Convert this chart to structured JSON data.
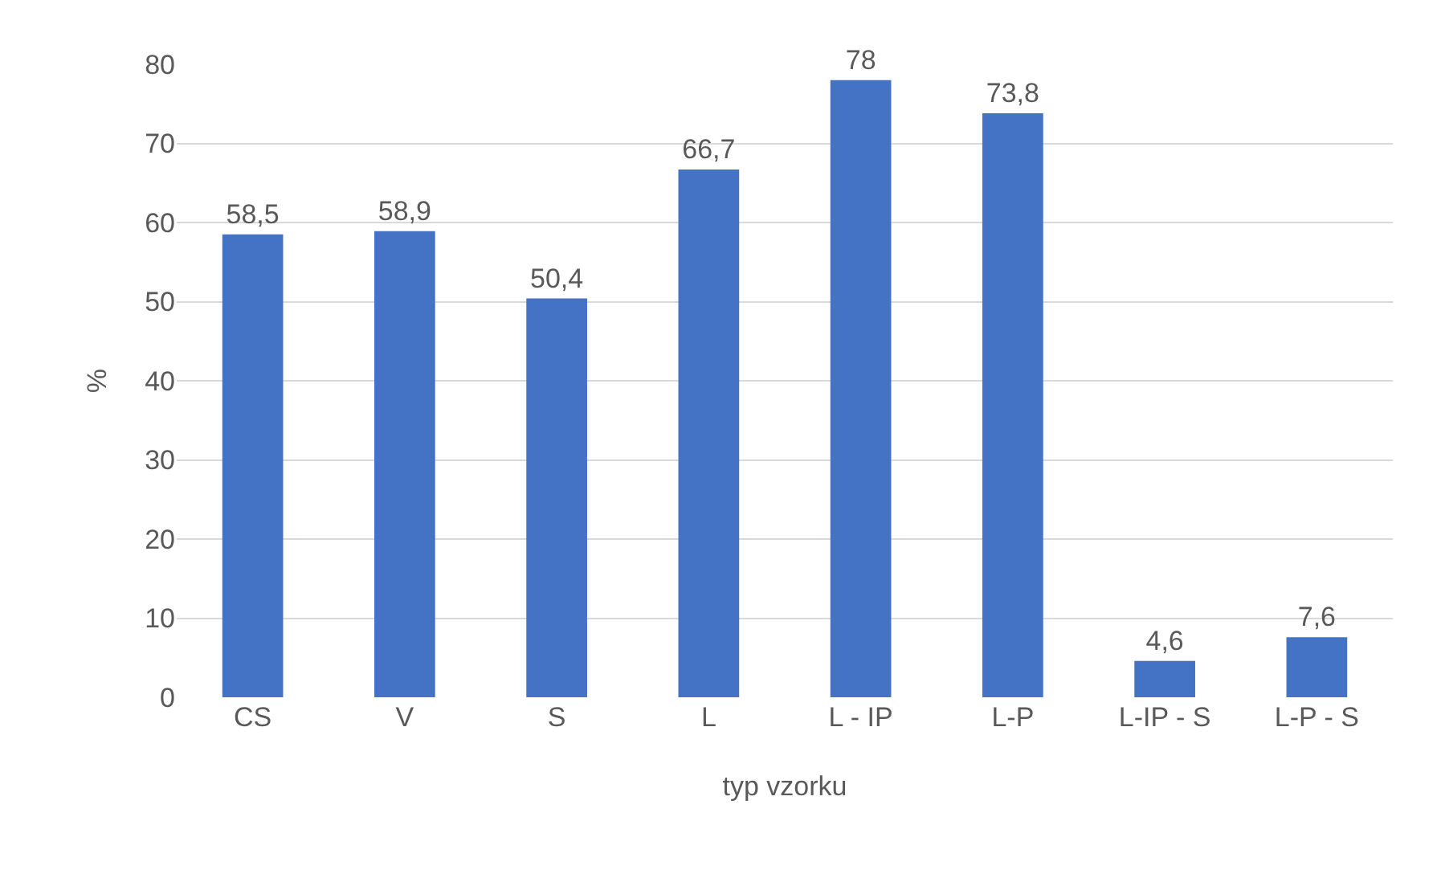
{
  "chart_data": {
    "type": "bar",
    "xlabel": "typ vzorku",
    "ylabel": "%",
    "categories": [
      "CS",
      "V",
      "S",
      "L",
      "L - IP",
      "L-P",
      "L-IP - S",
      "L-P - S"
    ],
    "values": [
      58.5,
      58.9,
      50.4,
      66.7,
      78,
      73.8,
      4.6,
      7.6
    ],
    "value_labels": [
      "58,5",
      "58,9",
      "50,4",
      "66,7",
      "78",
      "73,8",
      "4,6",
      "7,6"
    ],
    "color": "#4472c4",
    "ylim": [
      0,
      80
    ],
    "yticks": [
      0,
      10,
      20,
      30,
      40,
      50,
      60,
      70,
      80
    ],
    "grid": "y",
    "legend": false
  }
}
